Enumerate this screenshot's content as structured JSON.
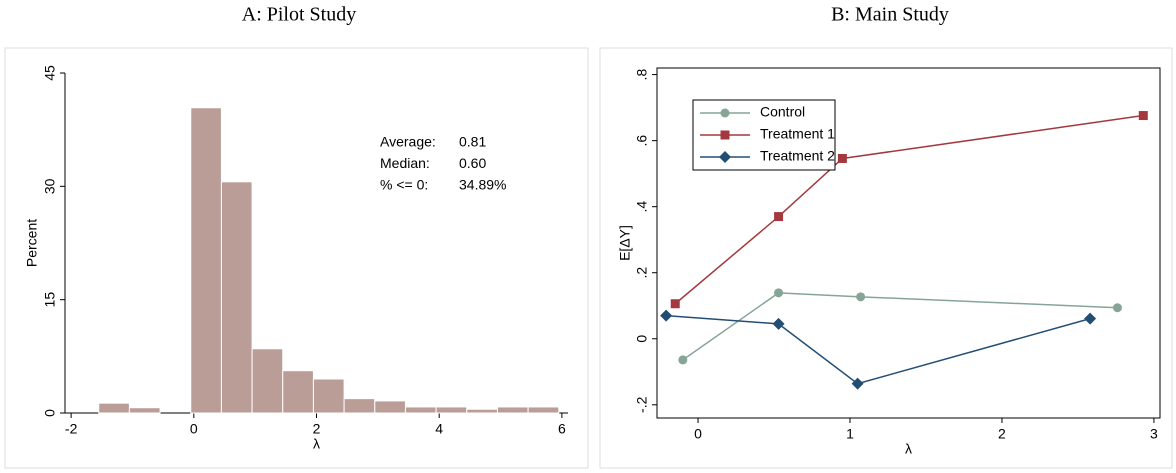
{
  "chart_data": [
    {
      "type": "histogram",
      "title": "A: Pilot Study",
      "x_label": "λ",
      "y_label": "Percent",
      "bins": [
        -1.55,
        -1.05,
        -0.55,
        -0.05,
        0.45,
        0.95,
        1.45,
        1.95,
        2.45,
        2.95,
        3.45,
        3.95,
        4.45,
        4.95,
        5.45,
        5.95
      ],
      "values": [
        1.3,
        0.7,
        0,
        40.4,
        30.6,
        8.5,
        5.6,
        4.5,
        1.9,
        1.6,
        0.8,
        0.8,
        0.5,
        0.8,
        0.8
      ],
      "color": "#bb9d97",
      "xlim": [
        -2.1,
        6.1
      ],
      "xticks": [
        -2,
        0,
        2,
        4,
        6
      ],
      "ylim": [
        0,
        45
      ],
      "yticks": [
        0,
        15,
        30,
        45
      ],
      "annotations": [
        {
          "label": "Average:",
          "value": "0.81"
        },
        {
          "label": "Median:",
          "value": "0.60"
        },
        {
          "label": "% <= 0:",
          "value": "34.89%"
        }
      ]
    },
    {
      "type": "line",
      "title": "B: Main Study",
      "x_label": "λ",
      "y_label": "E[ΔY]",
      "series": [
        {
          "name": "Control",
          "color": "#86a596",
          "marker": "circle",
          "x": [
            -0.1,
            0.53,
            1.07,
            2.76
          ],
          "values": [
            -0.064,
            0.139,
            0.127,
            0.094
          ]
        },
        {
          "name": "Treatment 1",
          "color": "#a3393e",
          "marker": "square",
          "x": [
            -0.15,
            0.53,
            0.95,
            2.93
          ],
          "values": [
            0.106,
            0.37,
            0.546,
            0.676
          ]
        },
        {
          "name": "Treatment 2",
          "color": "#234e74",
          "marker": "diamond",
          "x": [
            -0.21,
            0.53,
            1.05,
            2.58
          ],
          "values": [
            0.07,
            0.045,
            -0.136,
            0.061
          ]
        }
      ],
      "xlim": [
        -0.27,
        3.04
      ],
      "xticks": [
        0,
        1,
        2,
        3
      ],
      "ylim": [
        -0.24,
        0.82
      ],
      "yticks": [
        {
          "value": -0.2,
          "label": "-.2"
        },
        0,
        {
          "value": 0.2,
          "label": ".2"
        },
        {
          "value": 0.4,
          "label": ".4"
        },
        {
          "value": 0.6,
          "label": ".6"
        },
        {
          "value": 0.8,
          "label": ".8"
        }
      ],
      "legend": "upper left"
    }
  ]
}
